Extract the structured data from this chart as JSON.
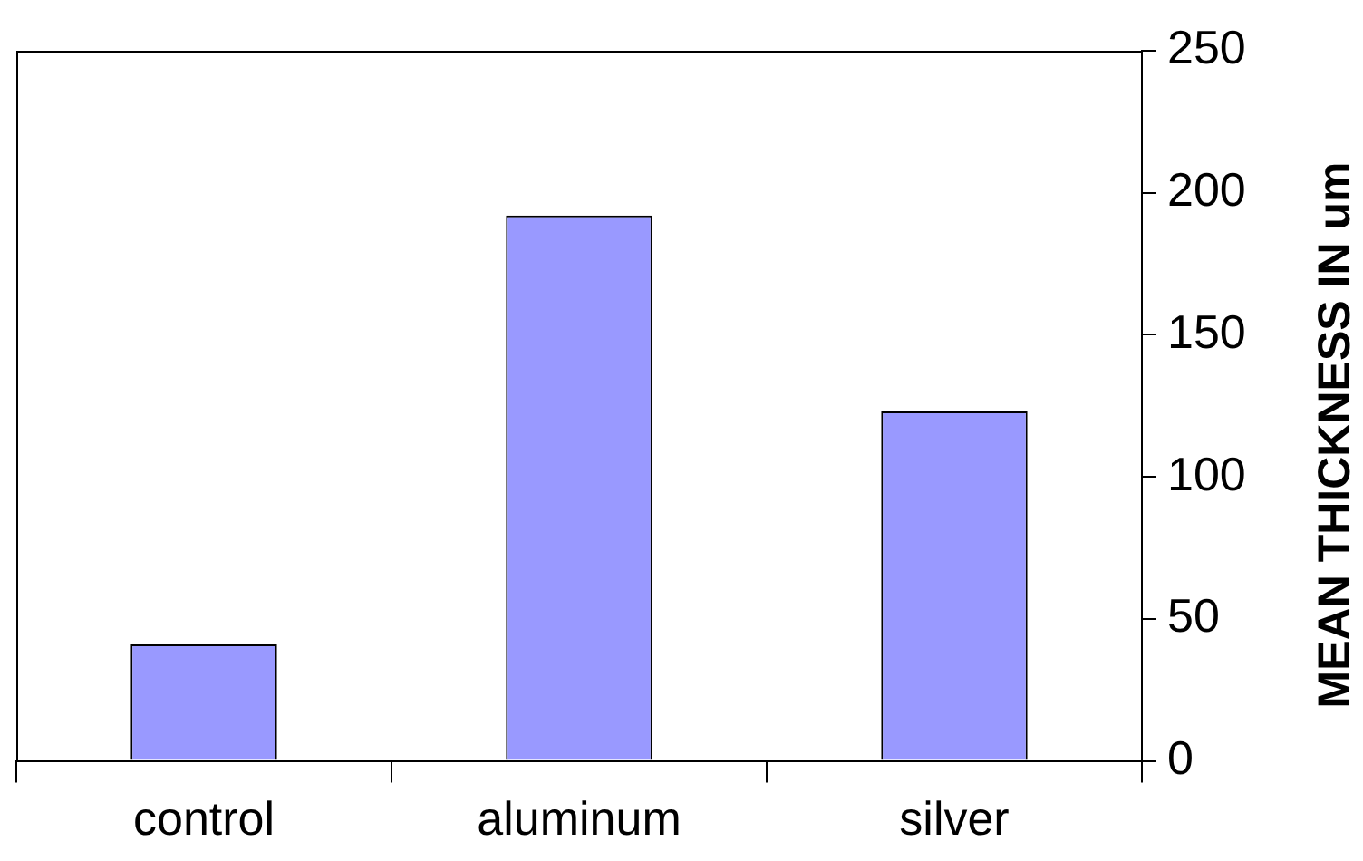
{
  "chart_data": {
    "type": "bar",
    "ylabel": "MEAN THICKNESS IN um",
    "categories": [
      "control",
      "aluminum",
      "silver"
    ],
    "values": [
      41,
      192,
      123
    ],
    "color": "#9999ff",
    "ylim": [
      0,
      250
    ],
    "yticks": [
      0,
      50,
      100,
      150,
      200,
      250
    ],
    "grid": false,
    "legend": false
  }
}
